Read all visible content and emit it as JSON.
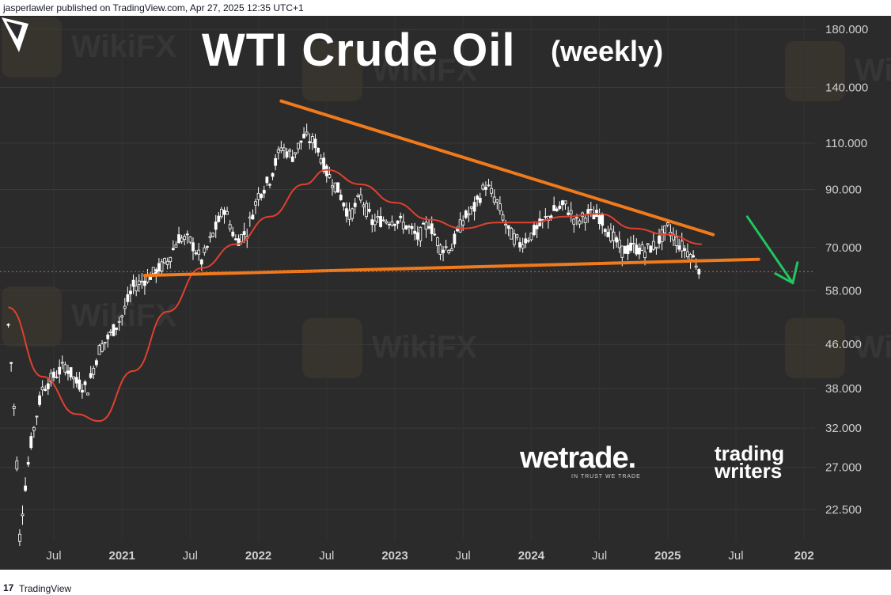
{
  "header": {
    "published": "jasperlawler published on TradingView.com, Apr 27, 2025 12:35 UTC+1"
  },
  "footer": {
    "logo": "17",
    "brand": "TradingView"
  },
  "branding": {
    "wetrade": "wetrade.",
    "wetrade_tagline": "IN TRUST WE TRADE",
    "tw_line1": "trading",
    "tw_line2": "writers",
    "watermark": "WikiFX"
  },
  "colors": {
    "background": "#2b2b2b",
    "candle": "#ffffff",
    "moving_average": "#e0402e",
    "trendline": "#f07a1c",
    "arrow": "#22c55e",
    "last_price_line": "#e05050"
  },
  "chart_data": {
    "type": "candlestick",
    "title": "WTI Crude Oil",
    "subtitle": "(weekly)",
    "y_scale": "log",
    "y_ticks": [
      "180.000",
      "140.000",
      "110.000",
      "90.000",
      "70.000",
      "58.000",
      "46.000",
      "38.000",
      "32.000",
      "27.000",
      "22.500"
    ],
    "x_ticks": [
      "Jul",
      "2021",
      "Jul",
      "2022",
      "Jul",
      "2023",
      "Jul",
      "2024",
      "Jul",
      "2025",
      "Jul",
      "202"
    ],
    "ylim": [
      21,
      182
    ],
    "series": [
      {
        "name": "price",
        "points": [
          [
            "2020-03",
            50
          ],
          [
            "2020-04",
            20
          ],
          [
            "2020-05",
            30
          ],
          [
            "2020-06",
            38
          ],
          [
            "2020-07",
            40
          ],
          [
            "2020-08",
            42
          ],
          [
            "2020-09",
            39
          ],
          [
            "2020-10",
            38
          ],
          [
            "2020-11",
            45
          ],
          [
            "2020-12",
            48
          ],
          [
            "2021-01",
            52
          ],
          [
            "2021-02",
            59
          ],
          [
            "2021-03",
            61
          ],
          [
            "2021-04",
            63
          ],
          [
            "2021-05",
            66
          ],
          [
            "2021-06",
            73
          ],
          [
            "2021-07",
            72
          ],
          [
            "2021-08",
            66
          ],
          [
            "2021-09",
            74
          ],
          [
            "2021-10",
            83
          ],
          [
            "2021-11",
            72
          ],
          [
            "2021-12",
            75
          ],
          [
            "2022-01",
            88
          ],
          [
            "2022-02",
            94
          ],
          [
            "2022-03",
            108
          ],
          [
            "2022-04",
            104
          ],
          [
            "2022-05",
            113
          ],
          [
            "2022-06",
            110
          ],
          [
            "2022-07",
            97
          ],
          [
            "2022-08",
            90
          ],
          [
            "2022-09",
            80
          ],
          [
            "2022-10",
            87
          ],
          [
            "2022-11",
            78
          ],
          [
            "2022-12",
            79
          ],
          [
            "2023-01",
            79
          ],
          [
            "2023-02",
            77
          ],
          [
            "2023-03",
            73
          ],
          [
            "2023-04",
            78
          ],
          [
            "2023-05",
            70
          ],
          [
            "2023-06",
            70
          ],
          [
            "2023-07",
            79
          ],
          [
            "2023-08",
            83
          ],
          [
            "2023-09",
            92
          ],
          [
            "2023-10",
            85
          ],
          [
            "2023-11",
            75
          ],
          [
            "2023-12",
            71
          ],
          [
            "2024-01",
            74
          ],
          [
            "2024-02",
            78
          ],
          [
            "2024-03",
            82
          ],
          [
            "2024-04",
            84
          ],
          [
            "2024-05",
            78
          ],
          [
            "2024-06",
            81
          ],
          [
            "2024-07",
            80
          ],
          [
            "2024-08",
            74
          ],
          [
            "2024-09",
            69
          ],
          [
            "2024-10",
            70
          ],
          [
            "2024-11",
            69
          ],
          [
            "2024-12",
            71
          ],
          [
            "2025-01",
            76
          ],
          [
            "2025-02",
            71
          ],
          [
            "2025-03",
            68
          ],
          [
            "2025-04",
            63
          ]
        ]
      },
      {
        "name": "moving average",
        "points": [
          [
            "2020-03",
            54
          ],
          [
            "2020-06",
            40
          ],
          [
            "2020-09",
            34
          ],
          [
            "2020-11",
            33
          ],
          [
            "2021-02",
            41
          ],
          [
            "2021-05",
            53
          ],
          [
            "2021-08",
            64
          ],
          [
            "2021-11",
            71
          ],
          [
            "2022-02",
            80
          ],
          [
            "2022-05",
            92
          ],
          [
            "2022-07",
            98
          ],
          [
            "2022-10",
            92
          ],
          [
            "2023-01",
            85
          ],
          [
            "2023-04",
            79
          ],
          [
            "2023-07",
            76
          ],
          [
            "2023-10",
            78
          ],
          [
            "2024-01",
            78
          ],
          [
            "2024-04",
            80
          ],
          [
            "2024-07",
            81
          ],
          [
            "2024-10",
            76
          ],
          [
            "2025-01",
            74
          ],
          [
            "2025-04",
            71
          ]
        ]
      }
    ],
    "annotations": {
      "upper_trendline": [
        [
          "2022-03",
          132
        ],
        [
          "2025-05",
          74
        ]
      ],
      "lower_trendline": [
        [
          "2021-03",
          62
        ],
        [
          "2025-09",
          66.5
        ]
      ],
      "arrow": [
        [
          "2025-08",
          80
        ],
        [
          "2025-12",
          60
        ]
      ],
      "last_price": 63.02
    },
    "grid": true,
    "legend": "none"
  }
}
